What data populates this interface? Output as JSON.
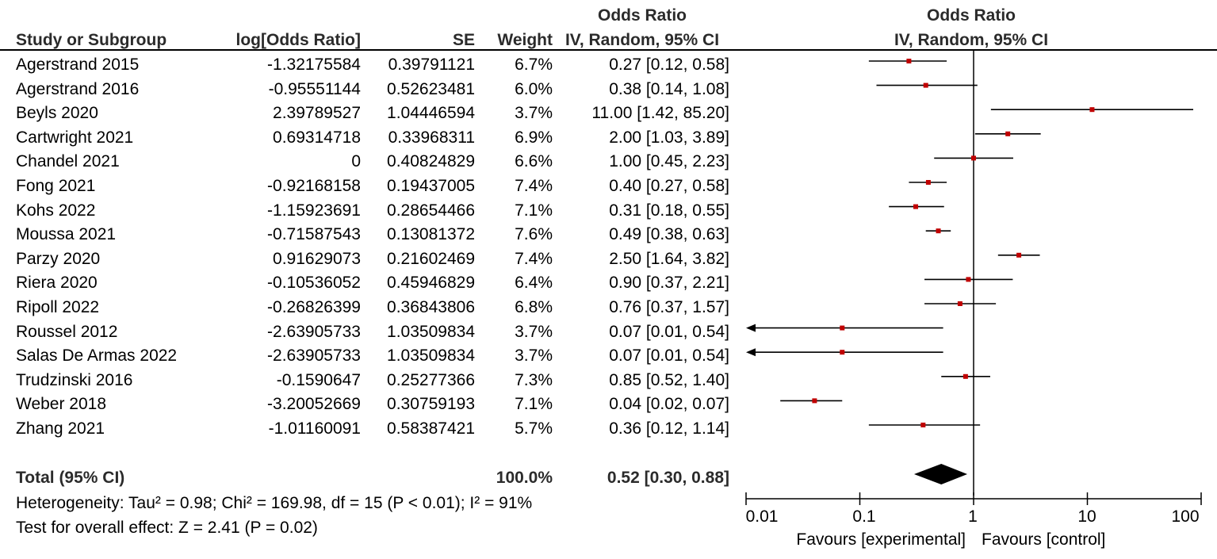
{
  "headers": {
    "study": "Study or Subgroup",
    "logor": "log[Odds Ratio]",
    "se": "SE",
    "weight": "Weight",
    "or_top": "Odds Ratio",
    "or_bottom": "IV, Random, 95% CI",
    "plot_top": "Odds Ratio",
    "plot_bottom": "IV, Random, 95% CI"
  },
  "studies": [
    {
      "name": "Agerstrand 2015",
      "logor": "-1.32175584",
      "se": "0.39791121",
      "weight": "6.7%",
      "ci_text": "0.27 [0.12, 0.58]"
    },
    {
      "name": "Agerstrand 2016",
      "logor": "-0.95551144",
      "se": "0.52623481",
      "weight": "6.0%",
      "ci_text": "0.38 [0.14, 1.08]"
    },
    {
      "name": "Beyls 2020",
      "logor": "2.39789527",
      "se": "1.04446594",
      "weight": "3.7%",
      "ci_text": "11.00 [1.42, 85.20]"
    },
    {
      "name": "Cartwright 2021",
      "logor": "0.69314718",
      "se": "0.33968311",
      "weight": "6.9%",
      "ci_text": "2.00 [1.03, 3.89]"
    },
    {
      "name": "Chandel 2021",
      "logor": "0",
      "se": "0.40824829",
      "weight": "6.6%",
      "ci_text": "1.00 [0.45, 2.23]"
    },
    {
      "name": "Fong 2021",
      "logor": "-0.92168158",
      "se": "0.19437005",
      "weight": "7.4%",
      "ci_text": "0.40 [0.27, 0.58]"
    },
    {
      "name": "Kohs 2022",
      "logor": "-1.15923691",
      "se": "0.28654466",
      "weight": "7.1%",
      "ci_text": "0.31 [0.18, 0.55]"
    },
    {
      "name": "Moussa 2021",
      "logor": "-0.71587543",
      "se": "0.13081372",
      "weight": "7.6%",
      "ci_text": "0.49 [0.38, 0.63]"
    },
    {
      "name": "Parzy 2020",
      "logor": "0.91629073",
      "se": "0.21602469",
      "weight": "7.4%",
      "ci_text": "2.50 [1.64, 3.82]"
    },
    {
      "name": "Riera 2020",
      "logor": "-0.10536052",
      "se": "0.45946829",
      "weight": "6.4%",
      "ci_text": "0.90 [0.37, 2.21]"
    },
    {
      "name": "Ripoll 2022",
      "logor": "-0.26826399",
      "se": "0.36843806",
      "weight": "6.8%",
      "ci_text": "0.76 [0.37, 1.57]"
    },
    {
      "name": "Roussel 2012",
      "logor": "-2.63905733",
      "se": "1.03509834",
      "weight": "3.7%",
      "ci_text": "0.07 [0.01, 0.54]"
    },
    {
      "name": "Salas De Armas 2022",
      "logor": "-2.63905733",
      "se": "1.03509834",
      "weight": "3.7%",
      "ci_text": "0.07 [0.01, 0.54]"
    },
    {
      "name": "Trudzinski 2016",
      "logor": "-0.1590647",
      "se": "0.25277366",
      "weight": "7.3%",
      "ci_text": "0.85 [0.52, 1.40]"
    },
    {
      "name": "Weber 2018",
      "logor": "-3.20052669",
      "se": "0.30759193",
      "weight": "7.1%",
      "ci_text": "0.04 [0.02, 0.07]"
    },
    {
      "name": "Zhang 2021",
      "logor": "-1.01160091",
      "se": "0.58387421",
      "weight": "5.7%",
      "ci_text": "0.36 [0.12, 1.14]"
    }
  ],
  "total": {
    "label": "Total (95% CI)",
    "weight": "100.0%",
    "ci_text": "0.52 [0.30, 0.88]"
  },
  "heterogeneity": "Heterogeneity: Tau² = 0.98; Chi² = 169.98, df = 15 (P < 0.01); I² = 91%",
  "overall_effect": "Test for overall effect: Z = 2.41 (P = 0.02)",
  "axis": {
    "ticks": [
      "0.01",
      "0.1",
      "1",
      "10",
      "100"
    ],
    "favours_left": "Favours [experimental]",
    "favours_right": "Favours [control]"
  },
  "colors": {
    "point": "#c00000",
    "line": "#000000",
    "diamond": "#000000"
  },
  "chart_data": {
    "type": "scatter",
    "subtype": "forest-plot",
    "title": "Odds Ratio IV, Random, 95% CI",
    "scale": "log",
    "xlim": [
      0.01,
      100
    ],
    "reference_line": 1,
    "studies": [
      {
        "name": "Agerstrand 2015",
        "or": 0.27,
        "lo": 0.12,
        "hi": 0.58
      },
      {
        "name": "Agerstrand 2016",
        "or": 0.38,
        "lo": 0.14,
        "hi": 1.08
      },
      {
        "name": "Beyls 2020",
        "or": 11.0,
        "lo": 1.42,
        "hi": 85.2
      },
      {
        "name": "Cartwright 2021",
        "or": 2.0,
        "lo": 1.03,
        "hi": 3.89
      },
      {
        "name": "Chandel 2021",
        "or": 1.0,
        "lo": 0.45,
        "hi": 2.23
      },
      {
        "name": "Fong 2021",
        "or": 0.4,
        "lo": 0.27,
        "hi": 0.58
      },
      {
        "name": "Kohs 2022",
        "or": 0.31,
        "lo": 0.18,
        "hi": 0.55
      },
      {
        "name": "Moussa 2021",
        "or": 0.49,
        "lo": 0.38,
        "hi": 0.63
      },
      {
        "name": "Parzy 2020",
        "or": 2.5,
        "lo": 1.64,
        "hi": 3.82
      },
      {
        "name": "Riera 2020",
        "or": 0.9,
        "lo": 0.37,
        "hi": 2.21
      },
      {
        "name": "Ripoll 2022",
        "or": 0.76,
        "lo": 0.37,
        "hi": 1.57
      },
      {
        "name": "Roussel 2012",
        "or": 0.07,
        "lo": 0.01,
        "hi": 0.54
      },
      {
        "name": "Salas De Armas 2022",
        "or": 0.07,
        "lo": 0.01,
        "hi": 0.54
      },
      {
        "name": "Trudzinski 2016",
        "or": 0.85,
        "lo": 0.52,
        "hi": 1.4
      },
      {
        "name": "Weber 2018",
        "or": 0.04,
        "lo": 0.02,
        "hi": 0.07
      },
      {
        "name": "Zhang 2021",
        "or": 0.36,
        "lo": 0.12,
        "hi": 1.14
      }
    ],
    "pooled": {
      "or": 0.52,
      "lo": 0.3,
      "hi": 0.88
    }
  }
}
